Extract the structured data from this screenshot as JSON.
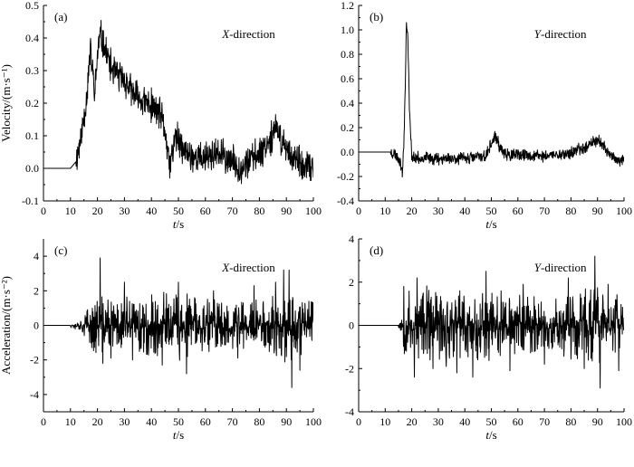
{
  "chart_data": [
    {
      "id": "a",
      "type": "line",
      "panel_label": "(a)",
      "annotation": {
        "italic": "X",
        "rest": "-direction"
      },
      "ylabel": "Velocity/(m·s⁻¹)",
      "xlabel": {
        "italic": "t",
        "rest": "/s"
      },
      "xlim": [
        0,
        100
      ],
      "ylim": [
        -0.1,
        0.5
      ],
      "xticks": [
        "0",
        "10",
        "20",
        "30",
        "40",
        "50",
        "60",
        "70",
        "80",
        "90",
        "100"
      ],
      "yticks": [
        "-0.1",
        "0.0",
        "0.1",
        "0.2",
        "0.3",
        "0.4",
        "0.5"
      ],
      "line_color": "#000000",
      "noise": {
        "amp": 0.06,
        "seed": 11
      },
      "series": [
        {
          "values": [
            [
              0,
              0
            ],
            [
              10,
              0
            ],
            [
              12,
              0.02
            ],
            [
              14,
              0.1
            ],
            [
              16,
              0.22
            ],
            [
              17,
              0.33
            ],
            [
              17.5,
              0.36
            ],
            [
              18.5,
              0.27
            ],
            [
              19,
              0.22
            ],
            [
              20,
              0.35
            ],
            [
              21,
              0.41
            ],
            [
              23,
              0.36
            ],
            [
              25,
              0.31
            ],
            [
              28,
              0.28
            ],
            [
              30,
              0.27
            ],
            [
              33,
              0.23
            ],
            [
              36,
              0.21
            ],
            [
              40,
              0.19
            ],
            [
              43,
              0.17
            ],
            [
              45,
              0.12
            ],
            [
              46,
              0.04
            ],
            [
              47,
              0.01
            ],
            [
              48,
              0.06
            ],
            [
              49,
              0.1
            ],
            [
              52,
              0.05
            ],
            [
              55,
              0.04
            ],
            [
              58,
              0.03
            ],
            [
              62,
              0.04
            ],
            [
              66,
              0.04
            ],
            [
              70,
              0.02
            ],
            [
              73,
              0.0
            ],
            [
              76,
              0.02
            ],
            [
              80,
              0.05
            ],
            [
              83,
              0.08
            ],
            [
              86,
              0.12
            ],
            [
              88,
              0.09
            ],
            [
              90,
              0.06
            ],
            [
              93,
              0.03
            ],
            [
              96,
              0.0
            ],
            [
              100,
              0.0
            ]
          ]
        }
      ]
    },
    {
      "id": "b",
      "type": "line",
      "panel_label": "(b)",
      "annotation": {
        "italic": "Y",
        "rest": "-direction"
      },
      "ylabel": "",
      "xlabel": {
        "italic": "t",
        "rest": "/s"
      },
      "xlim": [
        0,
        100
      ],
      "ylim": [
        -0.4,
        1.2
      ],
      "xticks": [
        "0",
        "10",
        "20",
        "30",
        "40",
        "50",
        "60",
        "70",
        "80",
        "90",
        "100"
      ],
      "yticks": [
        "-0.4",
        "-0.2",
        "0.0",
        "0.2",
        "0.4",
        "0.6",
        "0.8",
        "1.0",
        "1.2"
      ],
      "line_color": "#000000",
      "noise": {
        "amp": 0.06,
        "seed": 23
      },
      "series": [
        {
          "values": [
            [
              0,
              0
            ],
            [
              12,
              0
            ],
            [
              14,
              -0.02
            ],
            [
              15.5,
              -0.07
            ],
            [
              16.5,
              -0.16
            ],
            [
              17,
              0.05
            ],
            [
              17.5,
              0.5
            ],
            [
              18,
              1.07
            ],
            [
              18.6,
              0.9
            ],
            [
              19.2,
              0.3
            ],
            [
              20,
              -0.03
            ],
            [
              21,
              -0.05
            ],
            [
              25,
              -0.05
            ],
            [
              30,
              -0.05
            ],
            [
              35,
              -0.05
            ],
            [
              40,
              -0.05
            ],
            [
              45,
              -0.04
            ],
            [
              48,
              -0.03
            ],
            [
              50,
              0.07
            ],
            [
              51.5,
              0.13
            ],
            [
              53,
              0.05
            ],
            [
              55,
              -0.02
            ],
            [
              60,
              -0.03
            ],
            [
              65,
              -0.03
            ],
            [
              70,
              -0.03
            ],
            [
              75,
              -0.02
            ],
            [
              80,
              -0.01
            ],
            [
              85,
              0.04
            ],
            [
              88,
              0.08
            ],
            [
              90,
              0.1
            ],
            [
              92,
              0.05
            ],
            [
              95,
              -0.02
            ],
            [
              98,
              -0.08
            ],
            [
              100,
              -0.08
            ]
          ]
        }
      ]
    },
    {
      "id": "c",
      "type": "line",
      "panel_label": "(c)",
      "annotation": {
        "italic": "X",
        "rest": "-direction"
      },
      "ylabel": "Acceleration/(m·s⁻²)",
      "xlabel": {
        "italic": "t",
        "rest": "/s"
      },
      "xlim": [
        0,
        100
      ],
      "ylim": [
        -5,
        5
      ],
      "xticks": [
        "0",
        "10",
        "20",
        "30",
        "40",
        "50",
        "60",
        "70",
        "80",
        "90",
        "100"
      ],
      "yticks": [
        "-4",
        "-2",
        "0",
        "2",
        "4"
      ],
      "line_color": "#000000",
      "signal": {
        "start": 10,
        "ramp_end": 17,
        "seed": 37
      },
      "envelope": [
        [
          10,
          0.08
        ],
        [
          14,
          0.25
        ],
        [
          17,
          0.7
        ],
        [
          19,
          1.0
        ],
        [
          25,
          1.0
        ],
        [
          45,
          1.1
        ],
        [
          50,
          1.2
        ],
        [
          60,
          0.95
        ],
        [
          70,
          0.85
        ],
        [
          80,
          0.95
        ],
        [
          88,
          1.2
        ],
        [
          92,
          1.3
        ],
        [
          97,
          1.0
        ],
        [
          100,
          0.9
        ]
      ],
      "spikes": [
        [
          21,
          3.9
        ],
        [
          22,
          -2.2
        ],
        [
          25,
          -1.9
        ],
        [
          30,
          2.5
        ],
        [
          33,
          -2.0
        ],
        [
          44,
          -2.3
        ],
        [
          50,
          2.5
        ],
        [
          53,
          -2.8
        ],
        [
          63,
          2.0
        ],
        [
          72,
          -1.9
        ],
        [
          78,
          2.3
        ],
        [
          86,
          2.5
        ],
        [
          89,
          3.2
        ],
        [
          91,
          3.2
        ],
        [
          92,
          -3.6
        ],
        [
          95,
          -2.6
        ]
      ]
    },
    {
      "id": "d",
      "type": "line",
      "panel_label": "(d)",
      "annotation": {
        "italic": "Y",
        "rest": "-direction"
      },
      "ylabel": "",
      "xlabel": {
        "italic": "t",
        "rest": "/s"
      },
      "xlim": [
        0,
        100
      ],
      "ylim": [
        -4,
        4
      ],
      "xticks": [
        "0",
        "10",
        "20",
        "30",
        "40",
        "50",
        "60",
        "70",
        "80",
        "90",
        "100"
      ],
      "yticks": [
        "-4",
        "-2",
        "0",
        "2",
        "4"
      ],
      "line_color": "#000000",
      "signal": {
        "start": 15,
        "ramp_end": 17,
        "seed": 53
      },
      "envelope": [
        [
          15,
          0.1
        ],
        [
          16.5,
          0.3
        ],
        [
          17,
          0.9
        ],
        [
          20,
          1.05
        ],
        [
          30,
          1.0
        ],
        [
          40,
          1.0
        ],
        [
          50,
          1.05
        ],
        [
          60,
          0.95
        ],
        [
          70,
          0.9
        ],
        [
          80,
          0.9
        ],
        [
          90,
          1.15
        ],
        [
          95,
          1.0
        ],
        [
          100,
          0.9
        ]
      ],
      "spikes": [
        [
          17,
          1.8
        ],
        [
          18,
          -1.2
        ],
        [
          21,
          -2.4
        ],
        [
          22,
          2.2
        ],
        [
          28,
          -2.0
        ],
        [
          33,
          -1.9
        ],
        [
          37,
          -2.2
        ],
        [
          43,
          -2.4
        ],
        [
          48,
          2.5
        ],
        [
          57,
          -2.1
        ],
        [
          62,
          1.9
        ],
        [
          70,
          -1.8
        ],
        [
          79,
          2.2
        ],
        [
          85,
          -2.0
        ],
        [
          89,
          3.2
        ],
        [
          91,
          -2.9
        ],
        [
          94,
          1.9
        ],
        [
          98,
          -2.1
        ]
      ]
    }
  ]
}
